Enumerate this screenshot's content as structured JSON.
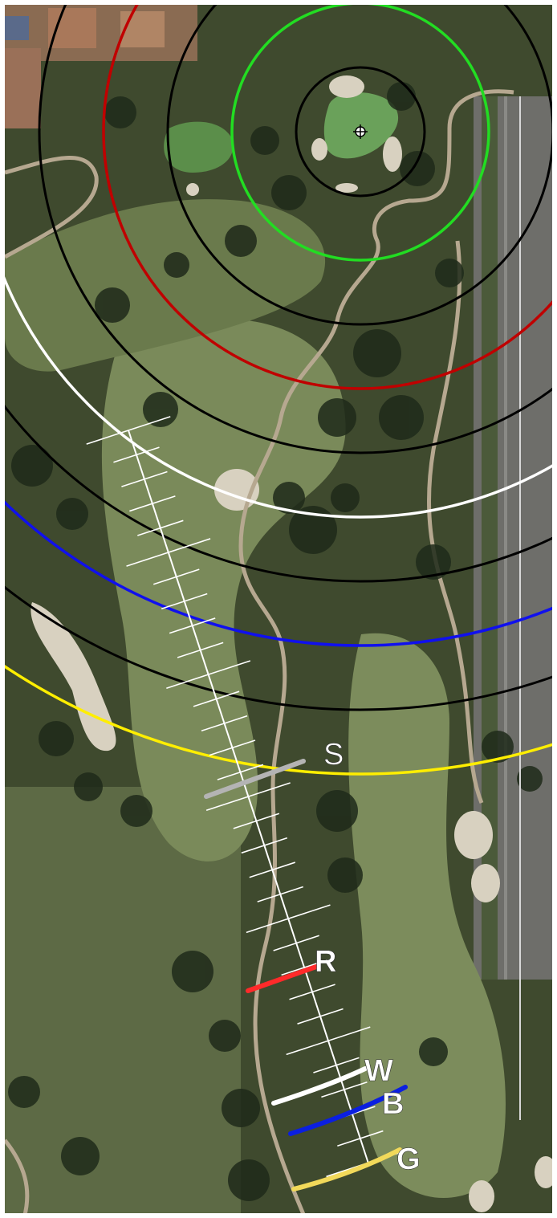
{
  "hole_map": {
    "tee_markers": [
      {
        "label": "S",
        "color": "#b4b4b4"
      },
      {
        "label": "R",
        "color": "#ff2a2a"
      },
      {
        "label": "W",
        "color": "#ffffff"
      },
      {
        "label": "B",
        "color": "#0b1fe0"
      },
      {
        "label": "G",
        "color": "#f2d95a"
      }
    ],
    "ring_colors": {
      "inner": "#000000",
      "green": "#22dd22",
      "red": "#c00000",
      "white": "#ffffff",
      "blue": "#1010ee",
      "yellow": "#ffee00"
    },
    "pin_icon": "crosshair-pin-icon"
  }
}
